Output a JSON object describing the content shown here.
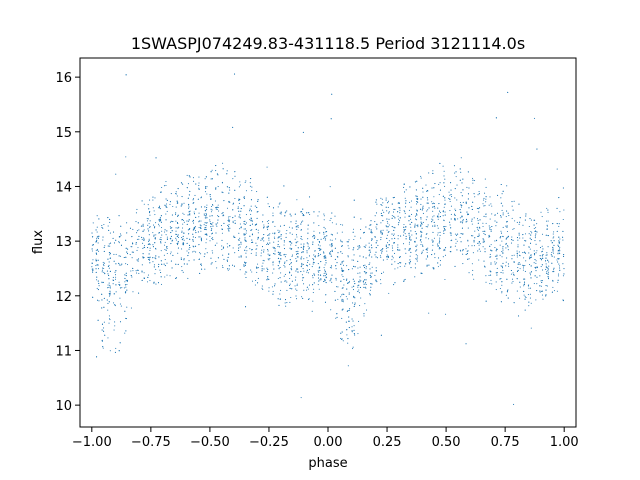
{
  "chart_data": {
    "type": "scatter",
    "title": "1SWASPJ074249.83-431118.5 Period 3121114.0s",
    "xlabel": "phase",
    "ylabel": "flux",
    "xlim": [
      -1.05,
      1.05
    ],
    "ylim": [
      9.6,
      16.35
    ],
    "x_ticks": [
      -1.0,
      -0.75,
      -0.5,
      -0.25,
      0.0,
      0.25,
      0.5,
      0.75,
      1.0
    ],
    "x_tick_labels": [
      "−1.00",
      "−0.75",
      "−0.50",
      "−0.25",
      "0.00",
      "0.25",
      "0.50",
      "0.75",
      "1.00"
    ],
    "y_ticks": [
      10,
      11,
      12,
      13,
      14,
      15,
      16
    ],
    "y_tick_labels": [
      "10",
      "11",
      "12",
      "13",
      "14",
      "15",
      "16"
    ],
    "grid": false,
    "legend": "none",
    "point_color": "#1f77b4",
    "series": [
      {
        "x": [
          -1.0,
          -0.95,
          -0.9,
          -0.85,
          -0.8,
          -0.75,
          -0.7,
          -0.65,
          -0.6,
          -0.55,
          -0.5,
          -0.45,
          -0.4,
          -0.35,
          -0.3,
          -0.25,
          -0.2,
          -0.15,
          -0.1,
          -0.05,
          0.0,
          0.05,
          0.1,
          0.15,
          0.2,
          0.25,
          0.3,
          0.35,
          0.4,
          0.45,
          0.5,
          0.55,
          0.6,
          0.65,
          0.7,
          0.75,
          0.8,
          0.85,
          0.9,
          0.95,
          1.0
        ],
        "y": [
          12.8,
          12.5,
          12.2,
          12.4,
          12.9,
          13.0,
          13.1,
          13.2,
          13.2,
          13.3,
          13.3,
          13.4,
          13.3,
          13.2,
          13.0,
          12.9,
          12.7,
          12.6,
          12.7,
          12.7,
          12.8,
          12.5,
          12.2,
          12.4,
          12.9,
          13.0,
          13.1,
          13.2,
          13.2,
          13.3,
          13.3,
          13.4,
          13.3,
          13.2,
          13.0,
          12.9,
          12.7,
          12.6,
          12.7,
          12.7,
          12.8
        ],
        "y_low": [
          11.8,
          11.0,
          10.9,
          11.4,
          12.0,
          12.2,
          12.2,
          12.3,
          12.4,
          12.4,
          12.5,
          12.5,
          12.4,
          12.3,
          12.1,
          12.0,
          11.8,
          11.8,
          11.9,
          11.9,
          11.8,
          11.2,
          10.9,
          11.4,
          12.0,
          12.2,
          12.2,
          12.3,
          12.4,
          12.4,
          12.5,
          12.5,
          12.4,
          12.3,
          12.1,
          12.0,
          11.8,
          11.8,
          11.9,
          11.9,
          11.8
        ],
        "y_high": [
          13.6,
          13.4,
          13.5,
          13.5,
          13.8,
          13.9,
          14.0,
          14.1,
          14.2,
          14.3,
          14.4,
          14.4,
          14.3,
          14.2,
          14.0,
          13.9,
          13.7,
          13.6,
          13.6,
          13.6,
          13.6,
          13.4,
          13.5,
          13.5,
          13.8,
          13.9,
          14.0,
          14.1,
          14.2,
          14.3,
          14.4,
          14.4,
          14.3,
          14.2,
          14.0,
          13.9,
          13.7,
          13.6,
          13.6,
          13.6,
          13.6
        ]
      }
    ]
  }
}
